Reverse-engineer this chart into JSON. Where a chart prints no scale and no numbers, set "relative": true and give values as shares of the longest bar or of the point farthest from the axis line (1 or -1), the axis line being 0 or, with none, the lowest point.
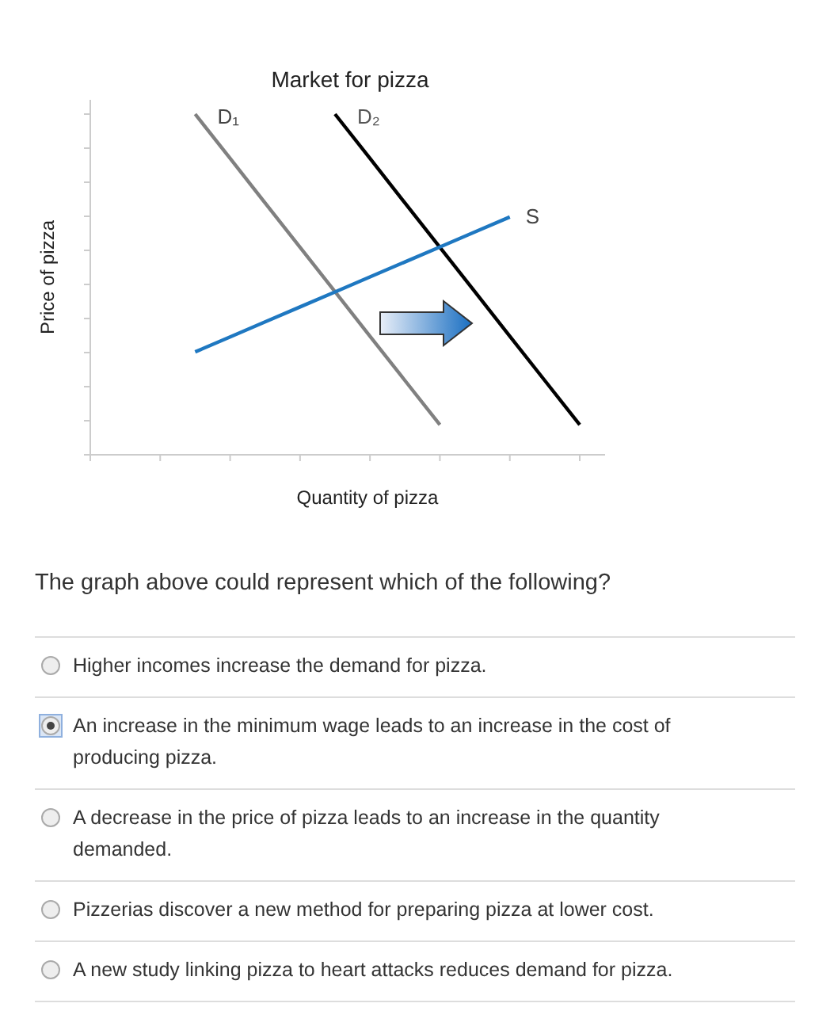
{
  "chart_data": {
    "type": "line",
    "title": "Market for pizza",
    "xlabel": "Quantity of pizza",
    "ylabel": "Price of pizza",
    "relative": true,
    "legend": false,
    "marker": "none",
    "line_style": "solid",
    "categories": [
      null,
      null,
      null,
      null,
      null,
      null,
      null,
      null,
      null,
      null,
      null,
      null,
      null,
      null,
      null
    ],
    "series": [
      {
        "name": "D₁",
        "color": "#808080",
        "values": [
          null,
          null,
          null,
          1.0,
          0.87,
          0.739,
          0.609,
          0.479,
          0.348,
          0.218,
          0.088,
          null,
          null,
          null,
          null
        ]
      },
      {
        "name": "D₂",
        "color": "#000000",
        "values": [
          null,
          null,
          null,
          null,
          null,
          null,
          null,
          1.0,
          0.87,
          0.739,
          0.609,
          0.479,
          0.348,
          0.218,
          0.088
        ]
      },
      {
        "name": "S",
        "color": "#1f78c1",
        "values": [
          null,
          null,
          null,
          0.302,
          0.346,
          0.39,
          0.434,
          0.478,
          0.522,
          0.566,
          0.61,
          0.654,
          0.698,
          null,
          null
        ]
      }
    ],
    "annotations": [
      "The graph above could represent which of the following?",
      "Higher incomes increase the demand for pizza.",
      "An increase in the minimum wage leads to an increase in the cost of producing pizza.",
      "A decrease in the price of pizza leads to an increase in the quantity demanded.",
      "Pizzerias discover a new method for preparing pizza at lower cost.",
      "A new study linking pizza to heart attacks reduces demand for pizza."
    ]
  }
}
